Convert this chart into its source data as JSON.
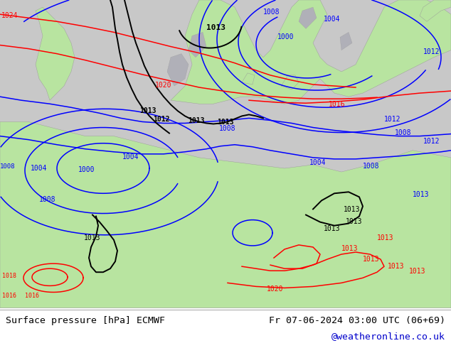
{
  "fig_width": 6.34,
  "fig_height": 4.9,
  "dpi": 100,
  "bg_color_footer": "#ffffff",
  "map_bg_color": "#c8c8c8",
  "land_color": "#b8e4a0",
  "sea_color": "#c8c8c8",
  "contour_blue": "#0000ff",
  "contour_red": "#ff0000",
  "contour_black": "#000000",
  "contour_lw": 1.1,
  "contour_black_lw": 1.4,
  "label_fontsize": 9.5,
  "label_font": "monospace",
  "label_color": "#000000",
  "website_color": "#0000cc",
  "left_label": "Surface pressure [hPa] ECMWF",
  "right_label": "Fr 07-06-2024 03:00 UTC (06+69)",
  "website": "@weatheronline.co.uk"
}
